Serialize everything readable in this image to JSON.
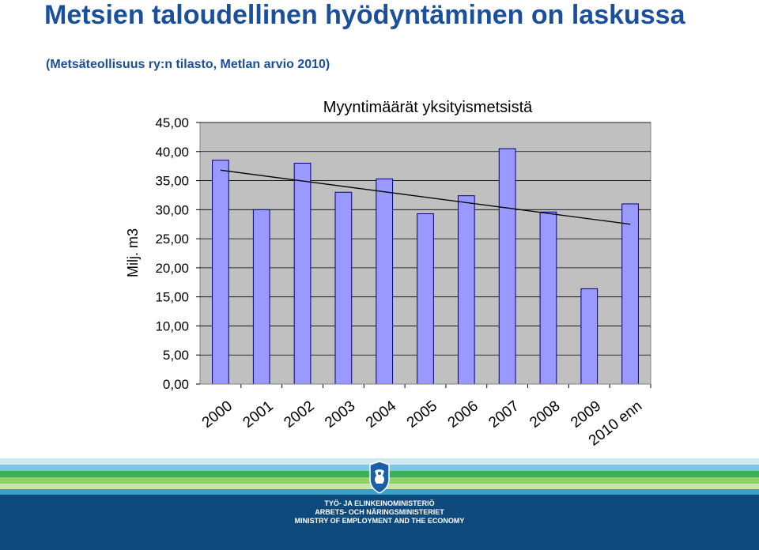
{
  "header": {
    "title": "Metsien taloudellinen hyödyntäminen on laskussa",
    "subtitle": "(Metsäteollisuus ry:n tilasto, Metlan arvio 2010)"
  },
  "chart_data": {
    "type": "bar",
    "title": "Myyntimäärät yksityismetsistä",
    "xlabel": "",
    "ylabel": "Milj. m3",
    "categories": [
      "2000",
      "2001",
      "2002",
      "2003",
      "2004",
      "2005",
      "2006",
      "2007",
      "2008",
      "2009",
      "2010 enn"
    ],
    "series": [
      {
        "values": [
          38.5,
          30.0,
          38.0,
          33.0,
          35.3,
          29.3,
          32.4,
          40.5,
          29.6,
          16.4,
          31.0
        ]
      }
    ],
    "trendline": {
      "start": 36.8,
      "end": 27.5
    },
    "ylim": [
      0,
      45
    ],
    "yticks": [
      "0,00",
      "5,00",
      "10,00",
      "15,00",
      "20,00",
      "25,00",
      "30,00",
      "35,00",
      "40,00",
      "45,00"
    ],
    "grid": true,
    "colors": {
      "bar": "#9999ff",
      "bar_stroke": "#000080",
      "plot_bg": "#c0c0c0",
      "trend": "#000000"
    }
  },
  "footer": {
    "ministry_lines": [
      "TYÖ- JA ELINKEINOMINISTERIÖ",
      "ARBETS- OCH NÄRINGSMINISTERIET",
      "MINISTRY OF EMPLOYMENT AND THE ECONOMY"
    ],
    "logo_icon": "lion-crest-icon",
    "band_colors": [
      "#cfe8f2",
      "#7cc8e0",
      "#3fae5a",
      "#8fd06b",
      "#c6e6a9",
      "#3aa0c8"
    ]
  }
}
